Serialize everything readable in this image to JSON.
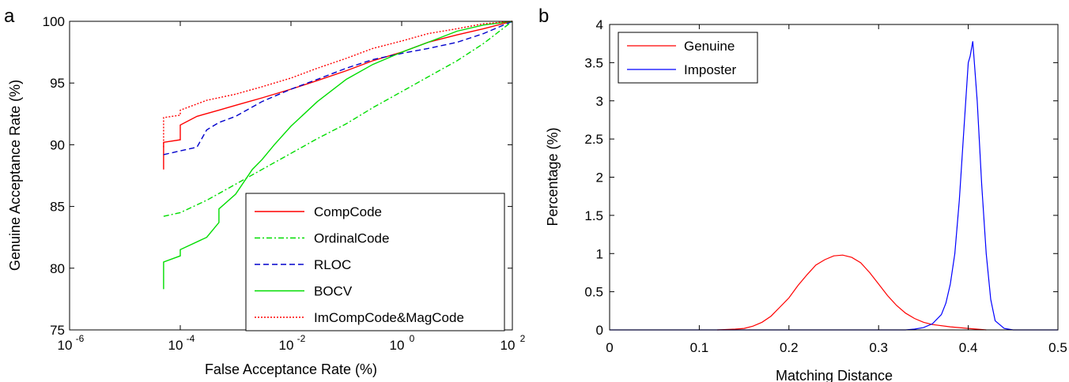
{
  "chart_data": [
    {
      "panel_label": "a",
      "type": "line",
      "xscale": "log",
      "xlabel": "False Acceptance Rate (%)",
      "ylabel": "Genuine Acceptance Rate (%)",
      "xlim": [
        1e-06,
        100
      ],
      "ylim": [
        75,
        100
      ],
      "xticks": [
        {
          "value": 1e-06,
          "base": "10",
          "exp": "-6"
        },
        {
          "value": 0.0001,
          "base": "10",
          "exp": "-4"
        },
        {
          "value": 0.01,
          "base": "10",
          "exp": "-2"
        },
        {
          "value": 1,
          "base": "10",
          "exp": "0"
        },
        {
          "value": 100,
          "base": "10",
          "exp": "2"
        }
      ],
      "yticks": [
        75,
        80,
        85,
        90,
        95,
        100
      ],
      "grid": false,
      "legend_position": "bottom-right",
      "series": [
        {
          "name": "CompCode",
          "color": "#ff0000",
          "dash": "solid",
          "x": [
            5e-05,
            5e-05,
            5e-05,
            0.0001,
            0.0001,
            0.0002,
            0.0005,
            0.001,
            0.003,
            0.01,
            0.03,
            0.1,
            0.3,
            1,
            3,
            10,
            30,
            100
          ],
          "y": [
            88.0,
            89.5,
            90.2,
            90.4,
            91.6,
            92.3,
            92.8,
            93.2,
            93.8,
            94.5,
            95.2,
            96.0,
            96.8,
            97.5,
            98.3,
            98.9,
            99.4,
            100
          ]
        },
        {
          "name": "OrdinalCode",
          "color": "#00dd00",
          "dash": "dashdot",
          "x": [
            5e-05,
            0.0001,
            0.0003,
            0.001,
            0.003,
            0.01,
            0.03,
            0.1,
            0.3,
            1,
            3,
            10,
            30,
            100
          ],
          "y": [
            84.2,
            84.5,
            85.5,
            86.8,
            88.0,
            89.3,
            90.5,
            91.7,
            93.0,
            94.3,
            95.5,
            96.8,
            98.2,
            100
          ]
        },
        {
          "name": "RLOC",
          "color": "#0000cc",
          "dash": "dashed",
          "x": [
            5e-05,
            0.0002,
            0.0003,
            0.0005,
            0.001,
            0.003,
            0.01,
            0.03,
            0.1,
            0.3,
            1,
            3,
            10,
            30,
            100
          ],
          "y": [
            89.2,
            89.8,
            91.2,
            91.8,
            92.3,
            93.5,
            94.5,
            95.3,
            96.2,
            96.9,
            97.4,
            97.8,
            98.3,
            99.0,
            100
          ]
        },
        {
          "name": "BOCV",
          "color": "#00dd00",
          "dash": "solid",
          "x": [
            5e-05,
            5e-05,
            0.0001,
            0.0001,
            0.0003,
            0.0005,
            0.0005,
            0.001,
            0.002,
            0.003,
            0.005,
            0.01,
            0.03,
            0.1,
            0.3,
            1,
            3,
            10,
            30,
            100
          ],
          "y": [
            78.3,
            80.5,
            81.0,
            81.5,
            82.5,
            83.7,
            84.8,
            86.0,
            88.0,
            88.8,
            90.0,
            91.5,
            93.5,
            95.3,
            96.5,
            97.5,
            98.3,
            99.2,
            99.7,
            100
          ]
        },
        {
          "name": "ImCompCode&MagCode",
          "color": "#ff0000",
          "dash": "dotted",
          "x": [
            5e-05,
            5e-05,
            0.0001,
            0.0001,
            0.0003,
            0.001,
            0.003,
            0.01,
            0.03,
            0.1,
            0.3,
            1,
            3,
            10,
            30,
            100
          ],
          "y": [
            89.8,
            92.2,
            92.4,
            92.8,
            93.6,
            94.1,
            94.7,
            95.4,
            96.2,
            97.0,
            97.8,
            98.4,
            99.0,
            99.4,
            99.8,
            100
          ]
        }
      ]
    },
    {
      "panel_label": "b",
      "type": "line",
      "xlabel": "Matching Distance",
      "ylabel": "Percentage (%)",
      "xlim": [
        0,
        0.5
      ],
      "ylim": [
        0,
        4
      ],
      "xticks": [
        0,
        0.1,
        0.2,
        0.3,
        0.4,
        0.5
      ],
      "xtick_labels": [
        "0",
        "0.1",
        "0.2",
        "0.3",
        "0.4",
        "0.5"
      ],
      "yticks": [
        0,
        0.5,
        1,
        1.5,
        2,
        2.5,
        3,
        3.5,
        4
      ],
      "ytick_labels": [
        "0",
        "0.5",
        "1",
        "1.5",
        "2",
        "2.5",
        "3",
        "3.5",
        "4"
      ],
      "grid": false,
      "legend_position": "top-left",
      "series": [
        {
          "name": "Genuine",
          "color": "#ff0000",
          "x": [
            0.12,
            0.14,
            0.15,
            0.16,
            0.17,
            0.18,
            0.19,
            0.2,
            0.21,
            0.22,
            0.23,
            0.24,
            0.25,
            0.26,
            0.27,
            0.28,
            0.29,
            0.3,
            0.31,
            0.32,
            0.33,
            0.34,
            0.35,
            0.36,
            0.38,
            0.4,
            0.42
          ],
          "y": [
            0.0,
            0.01,
            0.02,
            0.05,
            0.1,
            0.18,
            0.3,
            0.42,
            0.58,
            0.72,
            0.85,
            0.92,
            0.97,
            0.98,
            0.95,
            0.88,
            0.75,
            0.6,
            0.45,
            0.32,
            0.22,
            0.15,
            0.1,
            0.07,
            0.04,
            0.02,
            0.0
          ]
        },
        {
          "name": "Imposter",
          "color": "#0000ff",
          "x": [
            0,
            0.3,
            0.33,
            0.34,
            0.35,
            0.36,
            0.37,
            0.375,
            0.38,
            0.385,
            0.39,
            0.395,
            0.4,
            0.402,
            0.405,
            0.41,
            0.415,
            0.42,
            0.425,
            0.43,
            0.44,
            0.45,
            0.5
          ],
          "y": [
            0,
            0,
            0.0,
            0.01,
            0.03,
            0.08,
            0.2,
            0.35,
            0.6,
            1.0,
            1.7,
            2.6,
            3.5,
            3.58,
            3.78,
            3.0,
            1.9,
            1.0,
            0.4,
            0.12,
            0.02,
            0.0,
            0
          ]
        }
      ]
    }
  ]
}
